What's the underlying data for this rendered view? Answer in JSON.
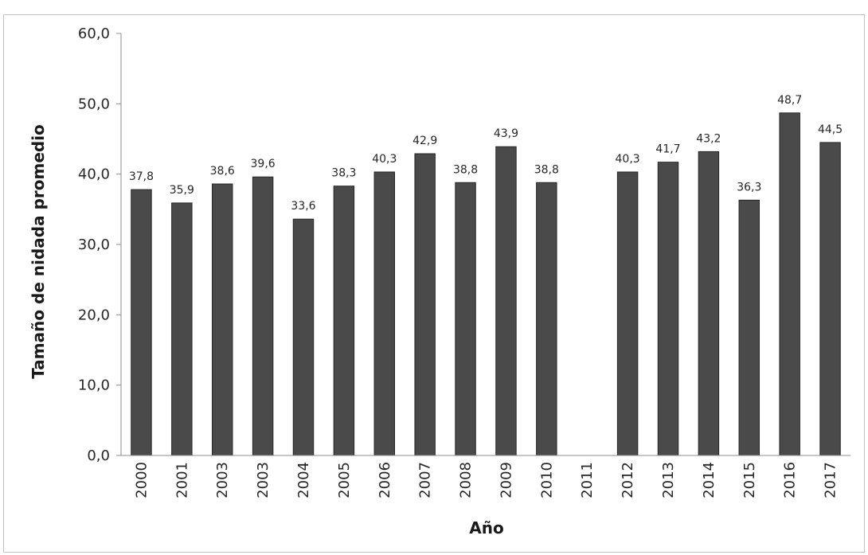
{
  "chart_data": {
    "type": "bar",
    "xlabel": "Año",
    "ylabel": "Tamaño de nidada promedio",
    "ylim": [
      0,
      60
    ],
    "yticks": [
      "0,0",
      "10,0",
      "20,0",
      "30,0",
      "40,0",
      "50,0",
      "60,0"
    ],
    "categories": [
      "2000",
      "2001",
      "2003",
      "2003",
      "2004",
      "2005",
      "2006",
      "2007",
      "2008",
      "2009",
      "2010",
      "2011",
      "2012",
      "2013",
      "2014",
      "2015",
      "2016",
      "2017"
    ],
    "values": [
      37.8,
      35.9,
      38.6,
      39.6,
      33.6,
      38.3,
      40.3,
      42.9,
      38.8,
      43.9,
      38.8,
      null,
      40.3,
      41.7,
      43.2,
      36.3,
      48.7,
      44.5
    ],
    "value_labels": [
      "37,8",
      "35,9",
      "38,6",
      "39,6",
      "33,6",
      "38,3",
      "40,3",
      "42,9",
      "38,8",
      "43,9",
      "38,8",
      "",
      "40,3",
      "41,7",
      "43,2",
      "36,3",
      "48,7",
      "44,5"
    ],
    "grid": false,
    "legend": "none",
    "bar_color": "#4a4a4a",
    "bar_edge_color": "#262626"
  }
}
